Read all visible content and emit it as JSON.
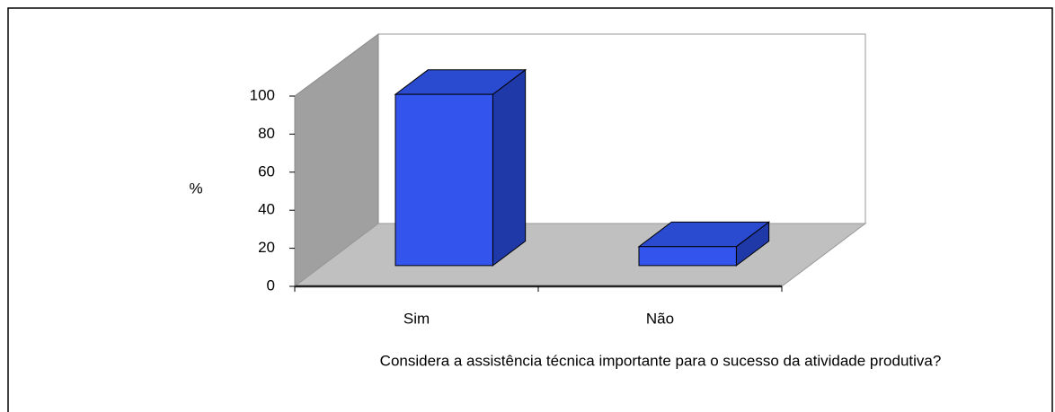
{
  "chart_data": {
    "type": "bar",
    "categories": [
      "Sim",
      "Não"
    ],
    "values": [
      90,
      10
    ],
    "color": "#3355ee",
    "ylabel": "%",
    "xlabel": "Considera a assistência técnica importante para o sucesso da atividade produtiva?",
    "ylim": [
      0,
      100
    ],
    "yticks": [
      0,
      20,
      40,
      60,
      80,
      100
    ]
  }
}
